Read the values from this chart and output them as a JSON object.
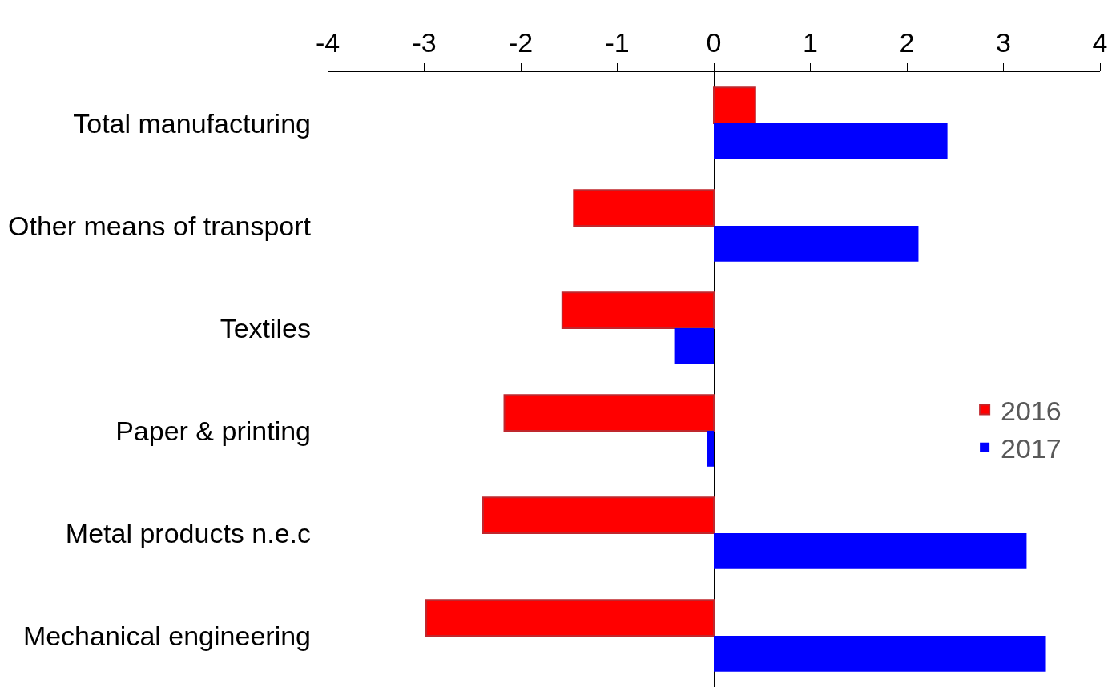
{
  "chart_data": {
    "type": "bar",
    "orientation": "horizontal",
    "categories": [
      "Total manufacturing",
      "Other means of transport",
      "Textiles",
      "Paper & printing",
      "Metal products n.e.c",
      "Mechanical engineering"
    ],
    "series": [
      {
        "name": "2016",
        "color": "#ff0000",
        "values": [
          0.43,
          -1.45,
          -1.57,
          -2.17,
          -2.39,
          -2.98
        ]
      },
      {
        "name": "2017",
        "color": "#0000ff",
        "values": [
          2.42,
          2.12,
          -0.41,
          -0.07,
          3.24,
          3.44
        ]
      }
    ],
    "xlim": [
      -4,
      4
    ],
    "xticks": [
      -4,
      -3,
      -2,
      -1,
      0,
      1,
      2,
      3,
      4
    ],
    "legend": "right"
  }
}
